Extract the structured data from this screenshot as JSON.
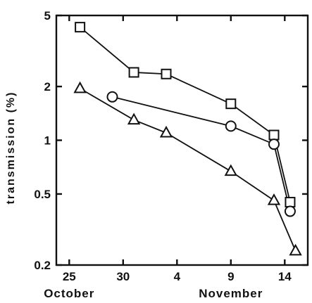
{
  "chart_data": {
    "type": "line",
    "title": "",
    "ylabel": "transmission (%)",
    "xlabel": "",
    "yscale": "log",
    "ylim": [
      0.2,
      5
    ],
    "xlim": [
      "Oct 24",
      "Nov 16"
    ],
    "y_ticks": [
      {
        "value": 5,
        "label": "5"
      },
      {
        "value": 2,
        "label": "2"
      },
      {
        "value": 1,
        "label": "1"
      },
      {
        "value": 0.5,
        "label": "0.5"
      },
      {
        "value": 0.2,
        "label": "0.2"
      }
    ],
    "x_ticks": [
      {
        "date": "Oct 25",
        "label": "25"
      },
      {
        "date": "Oct 30",
        "label": "30"
      },
      {
        "date": "Nov 4",
        "label": "4"
      },
      {
        "date": "Nov 9",
        "label": "9"
      },
      {
        "date": "Nov 14",
        "label": "14"
      }
    ],
    "month_labels": [
      {
        "text": "October",
        "anchor_date": "Oct 25"
      },
      {
        "text": "November",
        "anchor_date": "Nov 9"
      }
    ],
    "grid": false,
    "legend": "none",
    "series": [
      {
        "marker": "square",
        "points": [
          {
            "x": "Oct 26",
            "y": 4.3
          },
          {
            "x": "Oct 31",
            "y": 2.4
          },
          {
            "x": "Nov 3",
            "y": 2.35
          },
          {
            "x": "Nov 9",
            "y": 1.6
          },
          {
            "x": "Nov 13",
            "y": 1.07
          },
          {
            "x": "Nov 14.5",
            "y": 0.45
          }
        ]
      },
      {
        "marker": "circle",
        "points": [
          {
            "x": "Oct 29",
            "y": 1.75
          },
          {
            "x": "Nov 9",
            "y": 1.2
          },
          {
            "x": "Nov 13",
            "y": 0.95
          },
          {
            "x": "Nov 14.5",
            "y": 0.4
          }
        ]
      },
      {
        "marker": "triangle",
        "points": [
          {
            "x": "Oct 26",
            "y": 1.95
          },
          {
            "x": "Oct 31",
            "y": 1.3
          },
          {
            "x": "Nov 3",
            "y": 1.1
          },
          {
            "x": "Nov 9",
            "y": 0.67
          },
          {
            "x": "Nov 13",
            "y": 0.46
          },
          {
            "x": "Nov 15",
            "y": 0.24
          }
        ]
      }
    ]
  }
}
